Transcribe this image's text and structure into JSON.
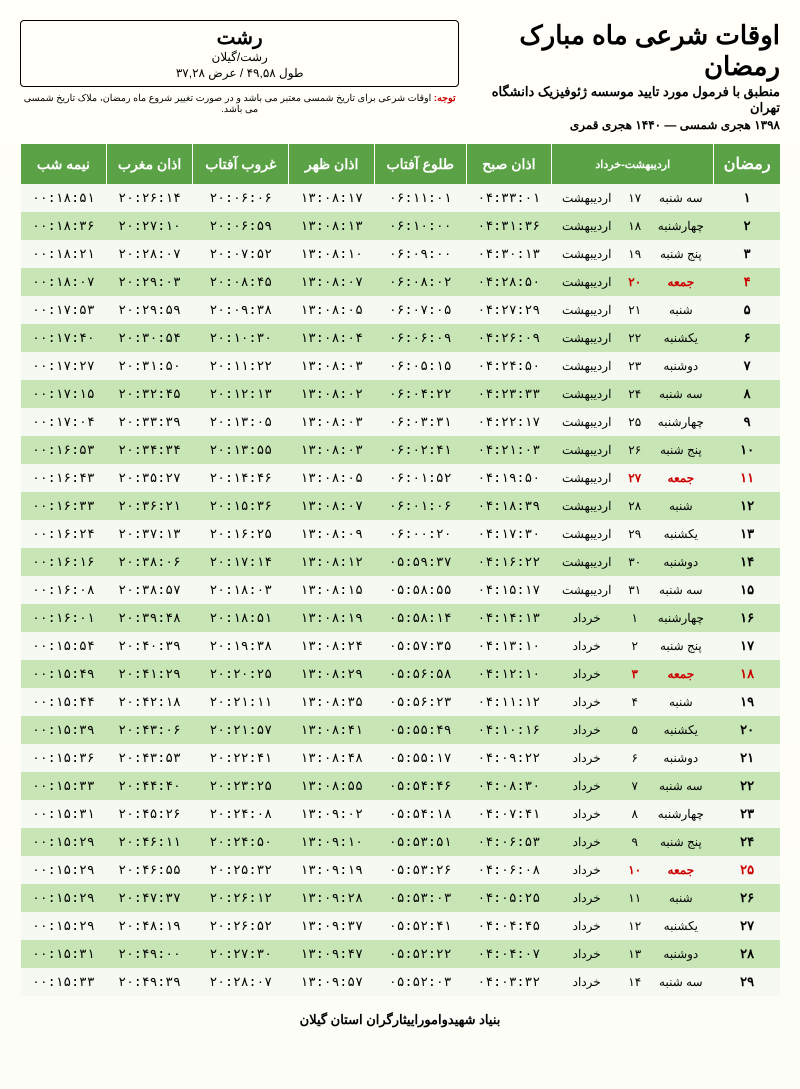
{
  "header": {
    "main_title": "اوقات شرعی ماه مبارک رمضان",
    "subtitle": "منطبق با فرمول مورد تایید موسسه ژئوفیزیک دانشگاه تهران",
    "dateline": "۱۳۹۸ هجری شمسی — ۱۴۴۰ هجری قمری"
  },
  "location": {
    "city": "رشت",
    "region": "رشت/گیلان",
    "coords": "طول ۴۹,۵۸ / عرض ۳۷,۲۸"
  },
  "notice_warn": "توجه:",
  "notice_text": " اوقات شرعی برای تاریخ شمسی معتبر می باشد و در صورت تغییر شروع ماه رمضان، ملاک تاریخ شمسی می باشد.",
  "columns": {
    "ramadan": "رمضان",
    "monthspan": "اردیبهشت-خرداد",
    "fajr": "اذان صبح",
    "sunrise": "طلوع آفتاب",
    "dhuhr": "اذان ظهر",
    "sunset": "غروب آفتاب",
    "maghrib": "اذان مغرب",
    "midnight": "نیمه شب"
  },
  "rows": [
    {
      "r": "۱",
      "d": "۱۷",
      "w": "سه شنبه",
      "m": "اردیبهشت",
      "f": "۰۴:۳۳:۰۱",
      "sr": "۰۶:۱۱:۰۱",
      "dh": "۱۳:۰۸:۱۷",
      "ss": "۲۰:۰۶:۰۶",
      "mg": "۲۰:۲۶:۱۴",
      "mid": "۰۰:۱۸:۵۱",
      "fri": false
    },
    {
      "r": "۲",
      "d": "۱۸",
      "w": "چهارشنبه",
      "m": "اردیبهشت",
      "f": "۰۴:۳۱:۳۶",
      "sr": "۰۶:۱۰:۰۰",
      "dh": "۱۳:۰۸:۱۳",
      "ss": "۲۰:۰۶:۵۹",
      "mg": "۲۰:۲۷:۱۰",
      "mid": "۰۰:۱۸:۳۶",
      "fri": false
    },
    {
      "r": "۳",
      "d": "۱۹",
      "w": "پنج شنبه",
      "m": "اردیبهشت",
      "f": "۰۴:۳۰:۱۳",
      "sr": "۰۶:۰۹:۰۰",
      "dh": "۱۳:۰۸:۱۰",
      "ss": "۲۰:۰۷:۵۲",
      "mg": "۲۰:۲۸:۰۷",
      "mid": "۰۰:۱۸:۲۱",
      "fri": false
    },
    {
      "r": "۴",
      "d": "۲۰",
      "w": "جمعه",
      "m": "اردیبهشت",
      "f": "۰۴:۲۸:۵۰",
      "sr": "۰۶:۰۸:۰۲",
      "dh": "۱۳:۰۸:۰۷",
      "ss": "۲۰:۰۸:۴۵",
      "mg": "۲۰:۲۹:۰۳",
      "mid": "۰۰:۱۸:۰۷",
      "fri": true
    },
    {
      "r": "۵",
      "d": "۲۱",
      "w": "شنبه",
      "m": "اردیبهشت",
      "f": "۰۴:۲۷:۲۹",
      "sr": "۰۶:۰۷:۰۵",
      "dh": "۱۳:۰۸:۰۵",
      "ss": "۲۰:۰۹:۳۸",
      "mg": "۲۰:۲۹:۵۹",
      "mid": "۰۰:۱۷:۵۳",
      "fri": false
    },
    {
      "r": "۶",
      "d": "۲۲",
      "w": "یکشنبه",
      "m": "اردیبهشت",
      "f": "۰۴:۲۶:۰۹",
      "sr": "۰۶:۰۶:۰۹",
      "dh": "۱۳:۰۸:۰۴",
      "ss": "۲۰:۱۰:۳۰",
      "mg": "۲۰:۳۰:۵۴",
      "mid": "۰۰:۱۷:۴۰",
      "fri": false
    },
    {
      "r": "۷",
      "d": "۲۳",
      "w": "دوشنبه",
      "m": "اردیبهشت",
      "f": "۰۴:۲۴:۵۰",
      "sr": "۰۶:۰۵:۱۵",
      "dh": "۱۳:۰۸:۰۳",
      "ss": "۲۰:۱۱:۲۲",
      "mg": "۲۰:۳۱:۵۰",
      "mid": "۰۰:۱۷:۲۷",
      "fri": false
    },
    {
      "r": "۸",
      "d": "۲۴",
      "w": "سه شنبه",
      "m": "اردیبهشت",
      "f": "۰۴:۲۳:۳۳",
      "sr": "۰۶:۰۴:۲۲",
      "dh": "۱۳:۰۸:۰۲",
      "ss": "۲۰:۱۲:۱۳",
      "mg": "۲۰:۳۲:۴۵",
      "mid": "۰۰:۱۷:۱۵",
      "fri": false
    },
    {
      "r": "۹",
      "d": "۲۵",
      "w": "چهارشنبه",
      "m": "اردیبهشت",
      "f": "۰۴:۲۲:۱۷",
      "sr": "۰۶:۰۳:۳۱",
      "dh": "۱۳:۰۸:۰۳",
      "ss": "۲۰:۱۳:۰۵",
      "mg": "۲۰:۳۳:۳۹",
      "mid": "۰۰:۱۷:۰۴",
      "fri": false
    },
    {
      "r": "۱۰",
      "d": "۲۶",
      "w": "پنج شنبه",
      "m": "اردیبهشت",
      "f": "۰۴:۲۱:۰۳",
      "sr": "۰۶:۰۲:۴۱",
      "dh": "۱۳:۰۸:۰۳",
      "ss": "۲۰:۱۳:۵۵",
      "mg": "۲۰:۳۴:۳۴",
      "mid": "۰۰:۱۶:۵۳",
      "fri": false
    },
    {
      "r": "۱۱",
      "d": "۲۷",
      "w": "جمعه",
      "m": "اردیبهشت",
      "f": "۰۴:۱۹:۵۰",
      "sr": "۰۶:۰۱:۵۲",
      "dh": "۱۳:۰۸:۰۵",
      "ss": "۲۰:۱۴:۴۶",
      "mg": "۲۰:۳۵:۲۷",
      "mid": "۰۰:۱۶:۴۳",
      "fri": true
    },
    {
      "r": "۱۲",
      "d": "۲۸",
      "w": "شنبه",
      "m": "اردیبهشت",
      "f": "۰۴:۱۸:۳۹",
      "sr": "۰۶:۰۱:۰۶",
      "dh": "۱۳:۰۸:۰۷",
      "ss": "۲۰:۱۵:۳۶",
      "mg": "۲۰:۳۶:۲۱",
      "mid": "۰۰:۱۶:۳۳",
      "fri": false
    },
    {
      "r": "۱۳",
      "d": "۲۹",
      "w": "یکشنبه",
      "m": "اردیبهشت",
      "f": "۰۴:۱۷:۳۰",
      "sr": "۰۶:۰۰:۲۰",
      "dh": "۱۳:۰۸:۰۹",
      "ss": "۲۰:۱۶:۲۵",
      "mg": "۲۰:۳۷:۱۳",
      "mid": "۰۰:۱۶:۲۴",
      "fri": false
    },
    {
      "r": "۱۴",
      "d": "۳۰",
      "w": "دوشنبه",
      "m": "اردیبهشت",
      "f": "۰۴:۱۶:۲۲",
      "sr": "۰۵:۵۹:۳۷",
      "dh": "۱۳:۰۸:۱۲",
      "ss": "۲۰:۱۷:۱۴",
      "mg": "۲۰:۳۸:۰۶",
      "mid": "۰۰:۱۶:۱۶",
      "fri": false
    },
    {
      "r": "۱۵",
      "d": "۳۱",
      "w": "سه شنبه",
      "m": "اردیبهشت",
      "f": "۰۴:۱۵:۱۷",
      "sr": "۰۵:۵۸:۵۵",
      "dh": "۱۳:۰۸:۱۵",
      "ss": "۲۰:۱۸:۰۳",
      "mg": "۲۰:۳۸:۵۷",
      "mid": "۰۰:۱۶:۰۸",
      "fri": false
    },
    {
      "r": "۱۶",
      "d": "۱",
      "w": "چهارشنبه",
      "m": "خرداد",
      "f": "۰۴:۱۴:۱۳",
      "sr": "۰۵:۵۸:۱۴",
      "dh": "۱۳:۰۸:۱۹",
      "ss": "۲۰:۱۸:۵۱",
      "mg": "۲۰:۳۹:۴۸",
      "mid": "۰۰:۱۶:۰۱",
      "fri": false
    },
    {
      "r": "۱۷",
      "d": "۲",
      "w": "پنج شنبه",
      "m": "خرداد",
      "f": "۰۴:۱۳:۱۰",
      "sr": "۰۵:۵۷:۳۵",
      "dh": "۱۳:۰۸:۲۴",
      "ss": "۲۰:۱۹:۳۸",
      "mg": "۲۰:۴۰:۳۹",
      "mid": "۰۰:۱۵:۵۴",
      "fri": false
    },
    {
      "r": "۱۸",
      "d": "۳",
      "w": "جمعه",
      "m": "خرداد",
      "f": "۰۴:۱۲:۱۰",
      "sr": "۰۵:۵۶:۵۸",
      "dh": "۱۳:۰۸:۲۹",
      "ss": "۲۰:۲۰:۲۵",
      "mg": "۲۰:۴۱:۲۹",
      "mid": "۰۰:۱۵:۴۹",
      "fri": true
    },
    {
      "r": "۱۹",
      "d": "۴",
      "w": "شنبه",
      "m": "خرداد",
      "f": "۰۴:۱۱:۱۲",
      "sr": "۰۵:۵۶:۲۳",
      "dh": "۱۳:۰۸:۳۵",
      "ss": "۲۰:۲۱:۱۱",
      "mg": "۲۰:۴۲:۱۸",
      "mid": "۰۰:۱۵:۴۴",
      "fri": false
    },
    {
      "r": "۲۰",
      "d": "۵",
      "w": "یکشنبه",
      "m": "خرداد",
      "f": "۰۴:۱۰:۱۶",
      "sr": "۰۵:۵۵:۴۹",
      "dh": "۱۳:۰۸:۴۱",
      "ss": "۲۰:۲۱:۵۷",
      "mg": "۲۰:۴۳:۰۶",
      "mid": "۰۰:۱۵:۳۹",
      "fri": false
    },
    {
      "r": "۲۱",
      "d": "۶",
      "w": "دوشنبه",
      "m": "خرداد",
      "f": "۰۴:۰۹:۲۲",
      "sr": "۰۵:۵۵:۱۷",
      "dh": "۱۳:۰۸:۴۸",
      "ss": "۲۰:۲۲:۴۱",
      "mg": "۲۰:۴۳:۵۳",
      "mid": "۰۰:۱۵:۳۶",
      "fri": false
    },
    {
      "r": "۲۲",
      "d": "۷",
      "w": "سه شنبه",
      "m": "خرداد",
      "f": "۰۴:۰۸:۳۰",
      "sr": "۰۵:۵۴:۴۶",
      "dh": "۱۳:۰۸:۵۵",
      "ss": "۲۰:۲۳:۲۵",
      "mg": "۲۰:۴۴:۴۰",
      "mid": "۰۰:۱۵:۳۳",
      "fri": false
    },
    {
      "r": "۲۳",
      "d": "۸",
      "w": "چهارشنبه",
      "m": "خرداد",
      "f": "۰۴:۰۷:۴۱",
      "sr": "۰۵:۵۴:۱۸",
      "dh": "۱۳:۰۹:۰۲",
      "ss": "۲۰:۲۴:۰۸",
      "mg": "۲۰:۴۵:۲۶",
      "mid": "۰۰:۱۵:۳۱",
      "fri": false
    },
    {
      "r": "۲۴",
      "d": "۹",
      "w": "پنج شنبه",
      "m": "خرداد",
      "f": "۰۴:۰۶:۵۳",
      "sr": "۰۵:۵۳:۵۱",
      "dh": "۱۳:۰۹:۱۰",
      "ss": "۲۰:۲۴:۵۰",
      "mg": "۲۰:۴۶:۱۱",
      "mid": "۰۰:۱۵:۲۹",
      "fri": false
    },
    {
      "r": "۲۵",
      "d": "۱۰",
      "w": "جمعه",
      "m": "خرداد",
      "f": "۰۴:۰۶:۰۸",
      "sr": "۰۵:۵۳:۲۶",
      "dh": "۱۳:۰۹:۱۹",
      "ss": "۲۰:۲۵:۳۲",
      "mg": "۲۰:۴۶:۵۵",
      "mid": "۰۰:۱۵:۲۹",
      "fri": true
    },
    {
      "r": "۲۶",
      "d": "۱۱",
      "w": "شنبه",
      "m": "خرداد",
      "f": "۰۴:۰۵:۲۵",
      "sr": "۰۵:۵۳:۰۳",
      "dh": "۱۳:۰۹:۲۸",
      "ss": "۲۰:۲۶:۱۲",
      "mg": "۲۰:۴۷:۳۷",
      "mid": "۰۰:۱۵:۲۹",
      "fri": false
    },
    {
      "r": "۲۷",
      "d": "۱۲",
      "w": "یکشنبه",
      "m": "خرداد",
      "f": "۰۴:۰۴:۴۵",
      "sr": "۰۵:۵۲:۴۱",
      "dh": "۱۳:۰۹:۳۷",
      "ss": "۲۰:۲۶:۵۲",
      "mg": "۲۰:۴۸:۱۹",
      "mid": "۰۰:۱۵:۲۹",
      "fri": false
    },
    {
      "r": "۲۸",
      "d": "۱۳",
      "w": "دوشنبه",
      "m": "خرداد",
      "f": "۰۴:۰۴:۰۷",
      "sr": "۰۵:۵۲:۲۲",
      "dh": "۱۳:۰۹:۴۷",
      "ss": "۲۰:۲۷:۳۰",
      "mg": "۲۰:۴۹:۰۰",
      "mid": "۰۰:۱۵:۳۱",
      "fri": false
    },
    {
      "r": "۲۹",
      "d": "۱۴",
      "w": "سه شنبه",
      "m": "خرداد",
      "f": "۰۴:۰۳:۳۲",
      "sr": "۰۵:۵۲:۰۳",
      "dh": "۱۳:۰۹:۵۷",
      "ss": "۲۰:۲۸:۰۷",
      "mg": "۲۰:۴۹:۳۹",
      "mid": "۰۰:۱۵:۳۳",
      "fri": false
    }
  ],
  "footer": "بنیاد شهیدواموراییثارگران استان گیلان"
}
